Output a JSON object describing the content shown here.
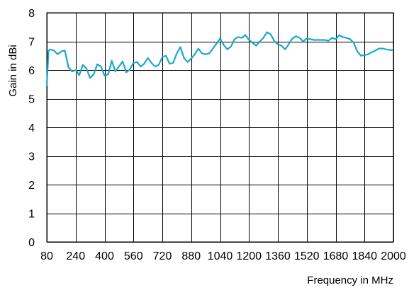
{
  "chart_data": {
    "type": "line",
    "title": "",
    "xlabel": "Frequency in MHz",
    "ylabel": "Gain in dBi",
    "xlim": [
      80,
      2000
    ],
    "ylim": [
      0,
      8
    ],
    "x_ticks": [
      80,
      240,
      400,
      560,
      720,
      880,
      1040,
      1200,
      1360,
      1520,
      1680,
      1840,
      2000
    ],
    "y_ticks": [
      0,
      1,
      2,
      3,
      4,
      5,
      6,
      7,
      8
    ],
    "grid": true,
    "legend": "none",
    "series_color": "#1aa7c9",
    "series": [
      {
        "x": [
          80,
          90,
          100,
          120,
          140,
          160,
          180,
          200,
          220,
          240,
          260,
          280,
          300,
          320,
          340,
          360,
          380,
          400,
          420,
          440,
          460,
          480,
          500,
          520,
          540,
          560,
          580,
          600,
          620,
          640,
          660,
          680,
          700,
          720,
          740,
          760,
          780,
          800,
          820,
          840,
          860,
          880,
          900,
          920,
          940,
          960,
          980,
          1000,
          1020,
          1040,
          1060,
          1080,
          1100,
          1120,
          1140,
          1160,
          1180,
          1200,
          1220,
          1240,
          1260,
          1280,
          1300,
          1320,
          1340,
          1360,
          1380,
          1400,
          1420,
          1440,
          1460,
          1480,
          1500,
          1520,
          1540,
          1560,
          1580,
          1600,
          1620,
          1640,
          1660,
          1680,
          1700,
          1720,
          1740,
          1760,
          1780,
          1800,
          1820,
          1840,
          1860,
          1880,
          1900,
          1920,
          1940,
          1960,
          1980,
          2000
        ],
        "values": [
          5.45,
          6.68,
          6.72,
          6.68,
          6.55,
          6.65,
          6.68,
          6.1,
          5.95,
          6.0,
          5.82,
          6.18,
          6.05,
          5.72,
          5.85,
          6.2,
          6.12,
          5.8,
          5.85,
          6.32,
          5.95,
          6.12,
          6.3,
          5.92,
          6.02,
          6.25,
          6.28,
          6.12,
          6.22,
          6.42,
          6.25,
          6.12,
          6.18,
          6.45,
          6.5,
          6.22,
          6.25,
          6.58,
          6.8,
          6.42,
          6.28,
          6.4,
          6.55,
          6.75,
          6.58,
          6.55,
          6.58,
          6.75,
          6.92,
          7.1,
          6.88,
          6.72,
          6.82,
          7.08,
          7.15,
          7.12,
          7.22,
          7.05,
          6.95,
          6.85,
          7.0,
          7.12,
          7.32,
          7.25,
          7.02,
          6.9,
          6.85,
          6.72,
          6.9,
          7.1,
          7.18,
          7.12,
          7.0,
          7.1,
          7.08,
          7.05,
          7.05,
          7.05,
          7.05,
          7.02,
          7.12,
          7.08,
          7.22,
          7.15,
          7.12,
          7.08,
          6.95,
          6.65,
          6.5,
          6.52,
          6.55,
          6.62,
          6.68,
          6.75,
          6.75,
          6.72,
          6.7,
          6.7
        ]
      }
    ]
  }
}
